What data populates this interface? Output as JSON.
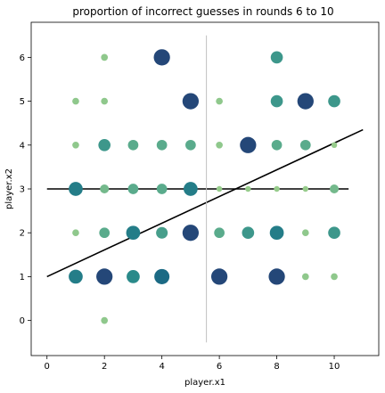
{
  "chart_data": {
    "type": "scatter",
    "title": "proportion of incorrect guesses in rounds 6 to 10",
    "xlabel": "player.x1",
    "ylabel": "player.x2",
    "xlim": [
      -0.55,
      11.55
    ],
    "ylim": [
      -0.8,
      6.8
    ],
    "xticks": [
      0,
      2,
      4,
      6,
      8,
      10
    ],
    "yticks": [
      0,
      1,
      2,
      3,
      4,
      5,
      6
    ],
    "grid": false,
    "size_range_px": [
      2.2,
      9.5
    ],
    "color_scale": [
      "#9ccf8c",
      "#5aab8c",
      "#2a8a8a",
      "#1b6a84",
      "#2a2f70"
    ],
    "points": [
      {
        "x": 2,
        "y": 0,
        "v": 0.05
      },
      {
        "x": 1,
        "y": 1,
        "v": 0.6
      },
      {
        "x": 2,
        "y": 1,
        "v": 0.9
      },
      {
        "x": 3,
        "y": 1,
        "v": 0.5
      },
      {
        "x": 4,
        "y": 1,
        "v": 0.75
      },
      {
        "x": 6,
        "y": 1,
        "v": 0.9
      },
      {
        "x": 8,
        "y": 1,
        "v": 0.9
      },
      {
        "x": 9,
        "y": 1,
        "v": 0.05
      },
      {
        "x": 10,
        "y": 1,
        "v": 0.05
      },
      {
        "x": 1,
        "y": 2,
        "v": 0.05
      },
      {
        "x": 2,
        "y": 2,
        "v": 0.25
      },
      {
        "x": 3,
        "y": 2,
        "v": 0.6
      },
      {
        "x": 4,
        "y": 2,
        "v": 0.35
      },
      {
        "x": 5,
        "y": 2,
        "v": 0.9
      },
      {
        "x": 6,
        "y": 2,
        "v": 0.25
      },
      {
        "x": 7,
        "y": 2,
        "v": 0.4
      },
      {
        "x": 8,
        "y": 2,
        "v": 0.6
      },
      {
        "x": 9,
        "y": 2,
        "v": 0.05
      },
      {
        "x": 10,
        "y": 2,
        "v": 0.4
      },
      {
        "x": 1,
        "y": 3,
        "v": 0.6
      },
      {
        "x": 2,
        "y": 3,
        "v": 0.15
      },
      {
        "x": 3,
        "y": 3,
        "v": 0.25
      },
      {
        "x": 4,
        "y": 3,
        "v": 0.25
      },
      {
        "x": 5,
        "y": 3,
        "v": 0.6
      },
      {
        "x": 6,
        "y": 3,
        "v": 0.02
      },
      {
        "x": 7,
        "y": 3,
        "v": 0.02
      },
      {
        "x": 8,
        "y": 3,
        "v": 0.02
      },
      {
        "x": 9,
        "y": 3,
        "v": 0.02
      },
      {
        "x": 10,
        "y": 3,
        "v": 0.15
      },
      {
        "x": 1,
        "y": 4,
        "v": 0.05
      },
      {
        "x": 2,
        "y": 4,
        "v": 0.4
      },
      {
        "x": 3,
        "y": 4,
        "v": 0.25
      },
      {
        "x": 4,
        "y": 4,
        "v": 0.25
      },
      {
        "x": 5,
        "y": 4,
        "v": 0.25
      },
      {
        "x": 6,
        "y": 4,
        "v": 0.05
      },
      {
        "x": 7,
        "y": 4,
        "v": 0.9
      },
      {
        "x": 8,
        "y": 4,
        "v": 0.25
      },
      {
        "x": 9,
        "y": 4,
        "v": 0.25
      },
      {
        "x": 10,
        "y": 4,
        "v": 0.02
      },
      {
        "x": 1,
        "y": 5,
        "v": 0.05
      },
      {
        "x": 2,
        "y": 5,
        "v": 0.05
      },
      {
        "x": 5,
        "y": 5,
        "v": 0.9
      },
      {
        "x": 6,
        "y": 5,
        "v": 0.05
      },
      {
        "x": 8,
        "y": 5,
        "v": 0.4
      },
      {
        "x": 9,
        "y": 5,
        "v": 0.9
      },
      {
        "x": 10,
        "y": 5,
        "v": 0.4
      },
      {
        "x": 2,
        "y": 6,
        "v": 0.05
      },
      {
        "x": 4,
        "y": 6,
        "v": 0.9
      },
      {
        "x": 8,
        "y": 6,
        "v": 0.4
      }
    ],
    "lines": [
      {
        "x": [
          0,
          11
        ],
        "y": [
          1,
          4.35
        ],
        "color": "#000000"
      },
      {
        "x": [
          0,
          10.5
        ],
        "y": [
          3,
          3
        ],
        "color": "#000000"
      },
      {
        "x": [
          5.55,
          5.55
        ],
        "y": [
          -0.5,
          6.5
        ],
        "color": "#c0c0c0"
      }
    ]
  }
}
